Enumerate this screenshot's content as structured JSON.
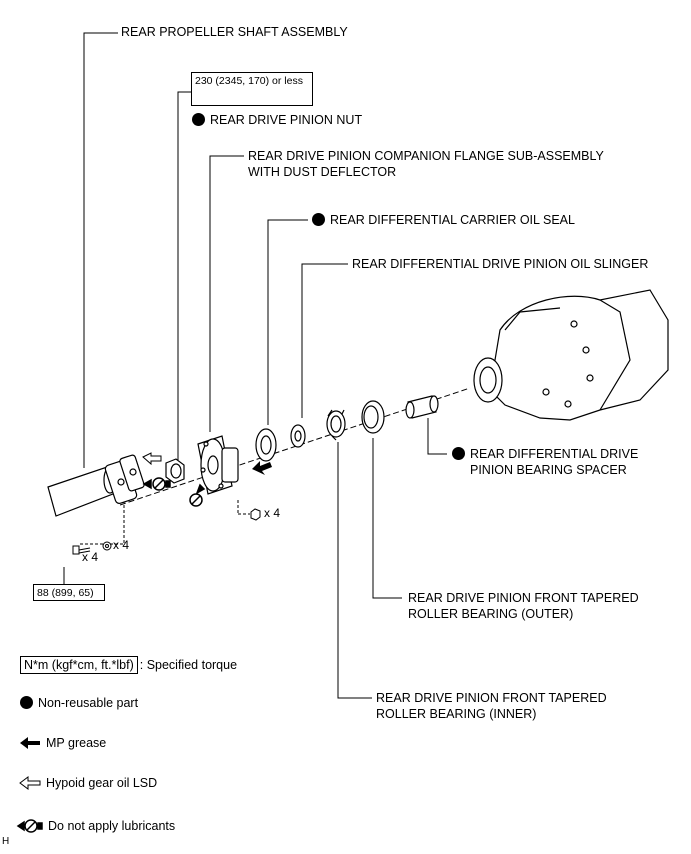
{
  "labels": {
    "propeller_shaft": "REAR PROPELLER SHAFT ASSEMBLY",
    "pinion_nut": "REAR DRIVE PINION NUT",
    "companion_flange_1": "REAR DRIVE PINION COMPANION FLANGE SUB-ASSEMBLY",
    "companion_flange_2": "WITH DUST DEFLECTOR",
    "oil_seal": "REAR DIFFERENTIAL CARRIER OIL SEAL",
    "oil_slinger": "REAR DIFFERENTIAL DRIVE PINION OIL SLINGER",
    "bearing_spacer_1": "REAR DIFFERENTIAL DRIVE",
    "bearing_spacer_2": "PINION BEARING SPACER",
    "bearing_outer_1": "REAR DRIVE PINION FRONT TAPERED",
    "bearing_outer_2": "ROLLER BEARING (OUTER)",
    "bearing_inner_1": "REAR DRIVE PINION FRONT TAPERED",
    "bearing_inner_2": "ROLLER BEARING (INNER)"
  },
  "torques": {
    "pinion_nut": "230 (2345, 170) or less",
    "shaft_bolt": "88 (899, 65)"
  },
  "quantities": {
    "washer": "x 4",
    "bolt": "x 4",
    "nut": "x 4"
  },
  "legend": {
    "torque_box": "N*m (kgf*cm, ft.*lbf)",
    "torque_text": ": Specified torque",
    "non_reusable": "Non-reusable part",
    "mp_grease": "MP grease",
    "hypoid_oil": "Hypoid gear oil LSD",
    "no_lubricant": "Do not apply lubricants"
  },
  "corner_mark": "H"
}
